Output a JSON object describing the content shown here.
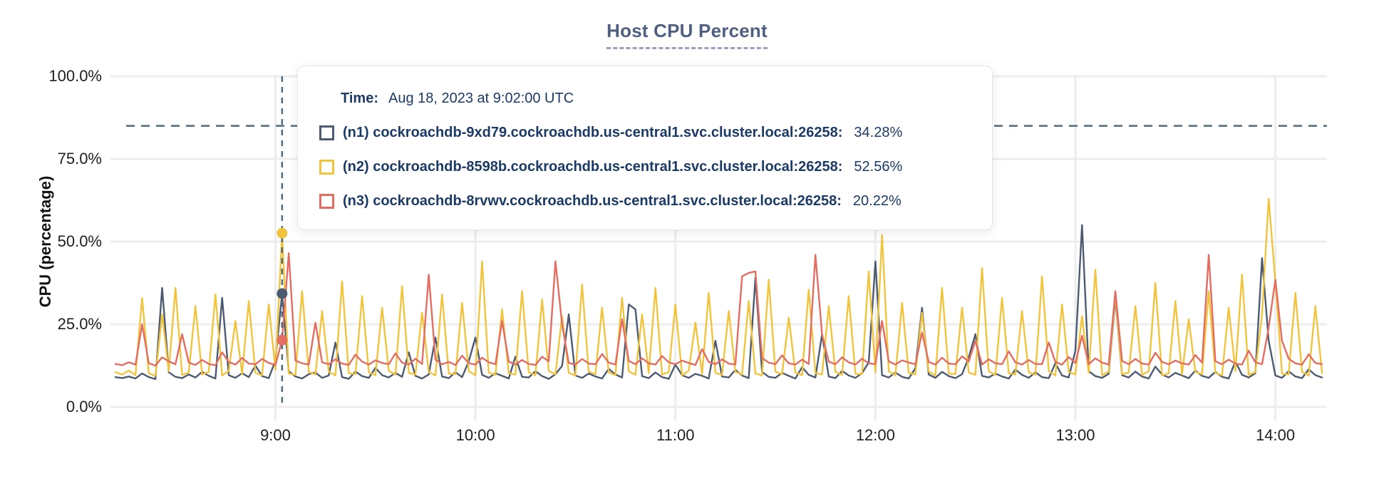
{
  "title": "Host CPU Percent",
  "tooltip": {
    "time_label": "Time:",
    "time_value": "Aug 18, 2023 at 9:02:00 UTC",
    "rows": [
      {
        "id": "n1",
        "label": "(n1) cockroachdb-9xd79.cockroachdb.us-central1.svc.cluster.local:26258:",
        "value": "34.28%"
      },
      {
        "id": "n2",
        "label": "(n2) cockroachdb-8598b.cockroachdb.us-central1.svc.cluster.local:26258:",
        "value": "52.56%"
      },
      {
        "id": "n3",
        "label": "(n3) cockroachdb-8rvwv.cockroachdb.us-central1.svc.cluster.local:26258:",
        "value": "20.22%"
      }
    ]
  },
  "chart_data": {
    "type": "line",
    "title": "Host CPU Percent",
    "xlabel": "",
    "ylabel": "CPU (percentage)",
    "ylim": [
      0,
      100
    ],
    "grid": true,
    "legend_position": "tooltip-overlay",
    "y_ticks": [
      {
        "value": 100,
        "label": "100.0%"
      },
      {
        "value": 75,
        "label": "75.0%"
      },
      {
        "value": 50,
        "label": "50.0%"
      },
      {
        "value": 25,
        "label": "25.0%"
      },
      {
        "value": 0,
        "label": "0.0%"
      }
    ],
    "x_ticks": [
      {
        "minute": 540,
        "label": "9:00"
      },
      {
        "minute": 600,
        "label": "10:00"
      },
      {
        "minute": 660,
        "label": "11:00"
      },
      {
        "minute": 720,
        "label": "12:00"
      },
      {
        "minute": 780,
        "label": "13:00"
      },
      {
        "minute": 840,
        "label": "14:00"
      }
    ],
    "x_start_minute": 492,
    "x_step_minutes": 2,
    "threshold": {
      "value": 85,
      "style": "dashed"
    },
    "highlight": {
      "minute": 542,
      "time": "Aug 18, 2023 at 9:02:00 UTC",
      "values": [
        34.28,
        52.56,
        20.22
      ]
    },
    "series": [
      {
        "id": "n1",
        "name": "(n1) cockroachdb-9xd79.cockroachdb.us-central1.svc.cluster.local:26258",
        "color": "#4c5a72",
        "values": [
          9.0,
          8.7,
          9.2,
          8.6,
          10.1,
          9.0,
          8.4,
          36.0,
          10.5,
          9.1,
          8.7,
          9.8,
          8.9,
          10.6,
          9.4,
          8.6,
          33.0,
          9.6,
          8.8,
          10.2,
          9.0,
          12.5,
          9.3,
          8.7,
          14.0,
          34.28,
          10.8,
          9.2,
          8.6,
          9.9,
          10.4,
          8.8,
          9.5,
          19.5,
          9.0,
          8.5,
          10.7,
          9.3,
          8.8,
          11.8,
          9.6,
          8.9,
          10.3,
          9.1,
          16.5,
          9.4,
          8.6,
          9.8,
          21.0,
          9.2,
          8.7,
          10.5,
          9.0,
          13.8,
          21.0,
          9.7,
          8.8,
          10.2,
          9.4,
          8.6,
          15.2,
          9.1,
          8.9,
          10.8,
          9.3,
          8.5,
          9.9,
          12.4,
          28.0,
          9.5,
          8.8,
          10.1,
          9.2,
          8.6,
          11.5,
          9.8,
          8.9,
          31.0,
          29.5,
          9.3,
          8.7,
          10.4,
          9.0,
          8.5,
          12.8,
          9.6,
          8.8,
          10.0,
          9.4,
          8.6,
          20.0,
          9.2,
          8.9,
          11.2,
          9.5,
          8.7,
          39.0,
          10.6,
          9.1,
          8.8,
          10.3,
          9.4,
          8.6,
          12.0,
          9.7,
          8.9,
          22.0,
          9.2,
          8.7,
          10.9,
          9.5,
          8.8,
          10.2,
          13.5,
          44.0,
          9.6,
          8.9,
          10.4,
          9.1,
          8.6,
          11.7,
          30.0,
          9.8,
          8.8,
          10.6,
          9.3,
          8.7,
          9.9,
          15.0,
          22.0,
          9.4,
          8.9,
          10.1,
          9.2,
          8.6,
          11.3,
          9.7,
          8.8,
          10.5,
          9.0,
          8.7,
          13.2,
          9.5,
          8.9,
          17.0,
          55.0,
          10.8,
          9.3,
          8.8,
          10.0,
          33.0,
          9.6,
          8.9,
          10.7,
          9.2,
          8.6,
          12.2,
          9.8,
          8.9,
          10.3,
          9.5,
          8.7,
          11.0,
          9.4,
          8.8,
          10.6,
          9.1,
          8.6,
          13.8,
          9.7,
          8.9,
          10.2,
          45.0,
          20.0,
          9.5,
          8.8,
          10.8,
          9.2,
          8.7,
          11.4,
          9.6,
          8.9
        ]
      },
      {
        "id": "n2",
        "name": "(n2) cockroachdb-8598b.cockroachdb.us-central1.svc.cluster.local:26258",
        "color": "#f1c440",
        "values": [
          10.5,
          9.8,
          11.0,
          9.6,
          33.0,
          10.2,
          9.4,
          28.0,
          10.8,
          36.0,
          9.7,
          10.4,
          30.5,
          9.8,
          10.6,
          34.0,
          9.5,
          10.9,
          26.0,
          9.9,
          32.0,
          10.3,
          9.6,
          31.0,
          11.2,
          52.56,
          10.1,
          9.7,
          35.0,
          10.5,
          9.8,
          29.0,
          10.7,
          9.5,
          38.0,
          10.2,
          9.9,
          33.5,
          10.4,
          9.6,
          30.0,
          11.0,
          9.7,
          36.5,
          10.3,
          9.8,
          28.5,
          10.6,
          9.5,
          34.0,
          10.1,
          9.9,
          31.5,
          10.8,
          9.6,
          44.0,
          10.4,
          9.7,
          29.5,
          10.2,
          9.8,
          35.0,
          10.5,
          9.6,
          32.5,
          10.9,
          9.8,
          27.5,
          10.3,
          9.5,
          37.0,
          10.7,
          9.9,
          30.0,
          10.4,
          9.6,
          33.0,
          10.8,
          9.7,
          28.0,
          10.2,
          36.0,
          9.8,
          10.5,
          31.0,
          9.6,
          10.9,
          25.5,
          9.9,
          34.5,
          10.3,
          9.7,
          29.0,
          10.6,
          9.8,
          32.0,
          10.1,
          9.5,
          38.5,
          10.7,
          9.9,
          27.0,
          10.4,
          9.6,
          35.5,
          10.2,
          9.8,
          30.5,
          10.6,
          9.7,
          33.5,
          10.0,
          9.9,
          41.0,
          10.5,
          52.0,
          10.8,
          9.6,
          31.5,
          10.3,
          9.8,
          28.5,
          10.7,
          9.5,
          36.0,
          10.1,
          9.9,
          30.0,
          10.4,
          9.7,
          42.0,
          10.8,
          9.6,
          33.0,
          10.2,
          9.8,
          29.0,
          10.5,
          9.7,
          39.5,
          10.9,
          9.5,
          31.0,
          10.6,
          9.8,
          27.5,
          10.3,
          41.5,
          9.6,
          10.7,
          34.0,
          9.9,
          10.4,
          30.5,
          9.7,
          10.8,
          37.5,
          9.5,
          10.2,
          32.0,
          9.8,
          26.5,
          10.6,
          9.9,
          35.0,
          10.3,
          9.6,
          30.0,
          10.9,
          40.0,
          9.7,
          10.5,
          28.0,
          63.0,
          38.0,
          10.1,
          9.8,
          34.5,
          10.6,
          9.5,
          30.5,
          10.2
        ]
      },
      {
        "id": "n3",
        "name": "(n3) cockroachdb-8rvwv.cockroachdb.us-central1.svc.cluster.local:26258",
        "color": "#e26d62",
        "values": [
          13.0,
          12.6,
          13.5,
          12.8,
          25.0,
          13.2,
          12.5,
          15.0,
          13.8,
          12.9,
          22.0,
          13.4,
          12.7,
          14.2,
          13.0,
          12.6,
          16.5,
          13.6,
          12.8,
          14.8,
          13.1,
          12.9,
          14.5,
          13.3,
          12.7,
          20.22,
          46.5,
          14.0,
          13.2,
          12.8,
          25.5,
          13.5,
          12.9,
          14.4,
          13.1,
          12.7,
          15.8,
          13.7,
          12.8,
          14.1,
          13.3,
          12.9,
          16.2,
          13.4,
          12.8,
          14.6,
          13.0,
          40.0,
          14.3,
          12.9,
          13.6,
          12.7,
          15.5,
          13.2,
          12.8,
          14.9,
          13.5,
          12.9,
          26.0,
          13.7,
          12.8,
          14.2,
          13.0,
          12.7,
          15.2,
          13.8,
          44.0,
          25.0,
          13.3,
          12.8,
          14.5,
          13.1,
          12.9,
          16.0,
          13.4,
          12.8,
          26.5,
          13.9,
          12.9,
          14.7,
          13.2,
          12.8,
          15.4,
          13.5,
          12.9,
          14.0,
          13.3,
          12.7,
          17.5,
          13.6,
          12.9,
          14.4,
          13.1,
          12.8,
          39.5,
          40.5,
          41.0,
          14.8,
          13.4,
          12.9,
          15.6,
          13.2,
          12.8,
          14.3,
          13.0,
          46.0,
          22.0,
          13.7,
          12.9,
          15.0,
          13.5,
          12.8,
          14.6,
          13.2,
          12.9,
          26.0,
          13.8,
          12.8,
          14.1,
          13.4,
          12.9,
          22.5,
          13.6,
          12.8,
          14.9,
          13.1,
          12.9,
          15.3,
          13.7,
          20.0,
          12.8,
          14.4,
          13.2,
          12.9,
          16.8,
          13.5,
          12.8,
          14.2,
          13.0,
          12.9,
          19.5,
          13.6,
          12.8,
          15.1,
          13.3,
          21.5,
          12.9,
          14.7,
          13.4,
          12.8,
          35.0,
          13.9,
          12.9,
          14.5,
          13.1,
          12.8,
          16.4,
          13.6,
          12.9,
          14.0,
          13.2,
          12.8,
          15.7,
          13.4,
          46.0,
          13.8,
          12.9,
          14.3,
          13.1,
          12.8,
          17.0,
          13.5,
          12.9,
          24.0,
          38.5,
          20.0,
          14.6,
          13.2,
          12.8,
          15.9,
          13.3,
          12.9
        ]
      }
    ],
    "colors": {
      "grid": "#ededed",
      "dashed_guides": "#506b7c",
      "axis_text": "#202020",
      "title": "#4f5f80",
      "tooltip_text": "#1b3a66"
    }
  }
}
